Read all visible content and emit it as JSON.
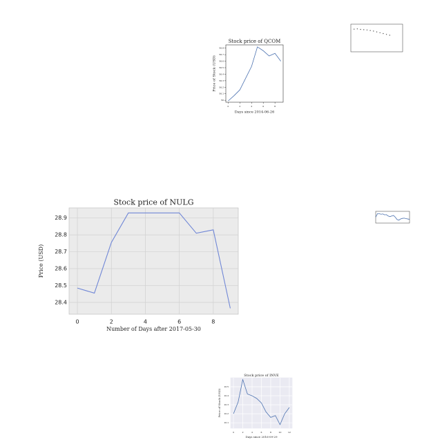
{
  "chart_data": [
    {
      "type": "line",
      "title": "Stock price of QCOM",
      "x_label": "Days since 2014-06-26",
      "y_label": "Price of Stock (USD)",
      "x": [
        0,
        1,
        2,
        3,
        4,
        5,
        6,
        7,
        8,
        9
      ],
      "series": [
        {
          "name": "QCOM",
          "color": "#4c72b0",
          "values": [
            55.99,
            56.07,
            56.16,
            56.34,
            56.52,
            56.82,
            56.76,
            56.68,
            56.72,
            56.6
          ]
        }
      ],
      "xlim": [
        -0.4,
        9.4
      ],
      "xticks": [
        0,
        2,
        4,
        6,
        8
      ],
      "ylim": [
        55.97,
        56.85
      ],
      "yticks": [
        56.0,
        56.1,
        56.2,
        56.3,
        56.4,
        56.5,
        56.6,
        56.7,
        56.8
      ],
      "grid": false
    },
    {
      "type": "line",
      "title": "Stock price of NULG",
      "x_label": "Number of Days after 2017-05-30",
      "y_label": "Price (USD)",
      "x": [
        0,
        1,
        2,
        3,
        4,
        5,
        6,
        7,
        8,
        9
      ],
      "series": [
        {
          "name": "NULG",
          "color": "#6f86d6",
          "values": [
            28.485,
            28.455,
            28.755,
            28.93,
            28.93,
            28.93,
            28.93,
            28.81,
            28.83,
            28.365
          ]
        }
      ],
      "xlim": [
        -0.49,
        9.47
      ],
      "xticks": [
        0,
        2,
        4,
        6,
        8
      ],
      "ylim": [
        28.33,
        28.96
      ],
      "yticks": [
        28.4,
        28.5,
        28.6,
        28.7,
        28.8,
        28.9
      ],
      "grid": true
    },
    {
      "type": "line",
      "title": "Stock price of INVE",
      "x_label": "Days since 2016-09-29",
      "y_label": "Price of Stock (USD)",
      "x": [
        0,
        1,
        2,
        3,
        4,
        5,
        6,
        7,
        8,
        9,
        10,
        11,
        12
      ],
      "series": [
        {
          "name": "INVE",
          "color": "#4c72b0",
          "values": [
            10.2,
            10.33,
            10.58,
            10.42,
            10.4,
            10.37,
            10.32,
            10.22,
            10.16,
            10.18,
            10.08,
            10.2,
            10.27
          ]
        }
      ],
      "xlim": [
        -0.6,
        12.6
      ],
      "xticks": [
        0,
        2,
        4,
        6,
        8,
        10,
        12
      ],
      "ylim": [
        10.04,
        10.6
      ],
      "yticks": [
        10.1,
        10.2,
        10.3,
        10.4,
        10.5
      ],
      "grid": true
    },
    {
      "type": "scatter",
      "x": [
        1,
        2,
        3,
        4,
        5,
        6,
        7,
        8,
        9,
        10,
        11,
        12
      ],
      "series": [
        {
          "name": "points",
          "color": "#555555",
          "values": [
            8.2,
            8.3,
            8.1,
            8.0,
            7.9,
            7.7,
            7.5,
            7.2,
            6.9,
            6.6,
            6.3,
            6.0
          ]
        }
      ],
      "xlim": [
        0,
        16
      ],
      "ylim": [
        0,
        10
      ],
      "grid": true
    },
    {
      "type": "line",
      "x": [
        0,
        1,
        2,
        3,
        4,
        5,
        6,
        7,
        8,
        9,
        10,
        11,
        12,
        13,
        14,
        15,
        16,
        17,
        18,
        19
      ],
      "series": [
        {
          "name": "series",
          "color": "#4c72b0",
          "values": [
            5,
            8,
            8,
            7.5,
            7.8,
            7,
            7.2,
            6,
            5.5,
            6,
            6.5,
            5,
            3,
            2.5,
            3.5,
            4,
            4.2,
            3.8,
            3.5,
            3.2
          ]
        }
      ],
      "xlim": [
        0,
        19
      ],
      "ylim": [
        0,
        10
      ],
      "grid": false
    }
  ]
}
